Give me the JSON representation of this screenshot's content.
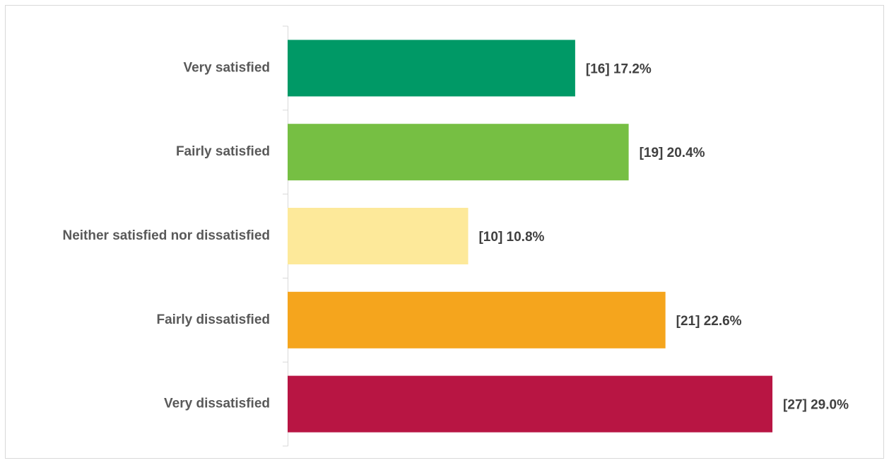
{
  "chart_data": {
    "type": "hbar",
    "categories": [
      "Very satisfied",
      "Fairly satisfied",
      "Neither satisfied nor dissatisfied",
      "Fairly dissatisfied",
      "Very dissatisfied"
    ],
    "values": [
      17.2,
      20.4,
      10.8,
      22.6,
      29.0
    ],
    "value_labels": [
      "[16] 17.2%",
      "[19] 20.4%",
      "[10] 10.8%",
      "[21] 22.6%",
      "[27] 29.0%"
    ],
    "colors": [
      "#009966",
      "#76bf43",
      "#fde99a",
      "#f5a51d",
      "#b81543"
    ],
    "xlim": [
      0,
      35
    ]
  }
}
